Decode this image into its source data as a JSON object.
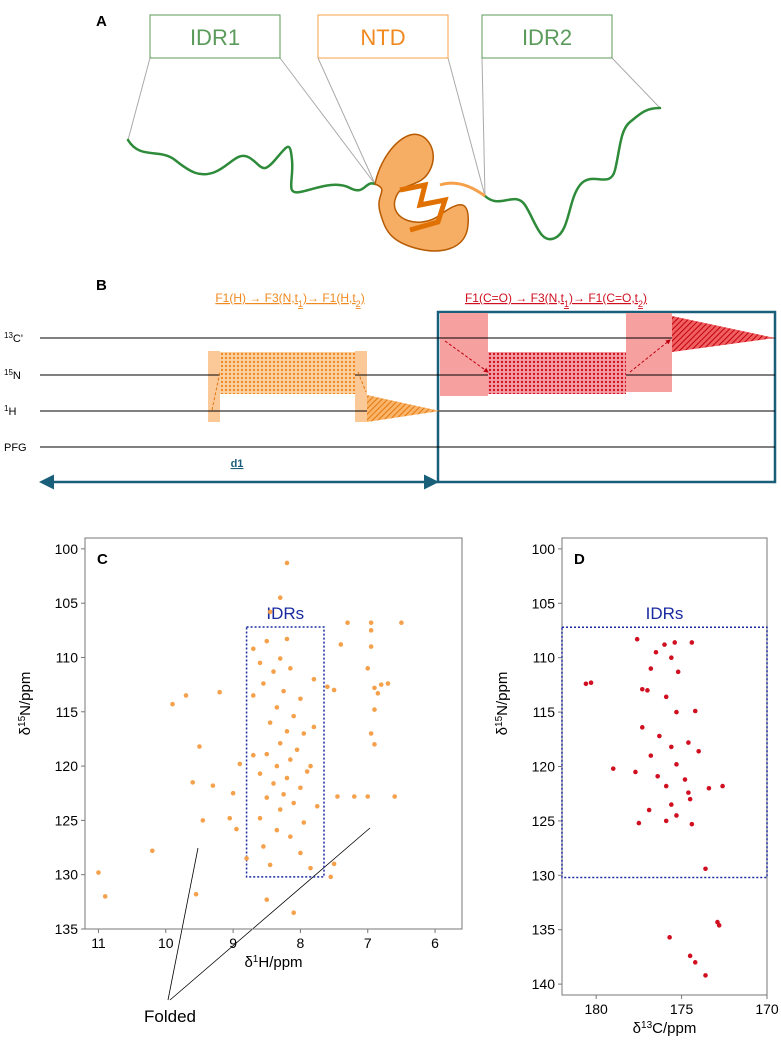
{
  "figure": {
    "panel_a": {
      "label": "A",
      "domains": [
        "IDR1",
        "NTD",
        "IDR2"
      ]
    },
    "panel_b": {
      "label": "B",
      "orange_scheme": {
        "parts": [
          "F1(H) → F3(N,t",
          "1",
          ")→ F1(H,t",
          "2",
          ")"
        ]
      },
      "red_scheme": {
        "parts": [
          "F1(C=O) → F3(N,t",
          "1",
          ")→ F1(C=O,t",
          "2",
          ")"
        ]
      },
      "channels": [
        {
          "sup": "13",
          "text": "C'"
        },
        {
          "sup": "15",
          "text": "N"
        },
        {
          "sup": "1",
          "text": "H"
        },
        {
          "text": "PFG"
        }
      ],
      "delay": "d1"
    },
    "annotation": "Folded"
  },
  "chart_data": [
    {
      "type": "scatter",
      "panel_label": "C",
      "color": "#f5a04a",
      "xlabel": {
        "pre": "δ",
        "sup": "1",
        "post": "H/ppm"
      },
      "ylabel": {
        "pre": "δ",
        "sup": "15",
        "post": "N/ppm"
      },
      "xlim": [
        11.2,
        5.6
      ],
      "ylim": [
        99,
        135
      ],
      "xticks": [
        11,
        10,
        9,
        8,
        7,
        6
      ],
      "yticks": [
        100,
        105,
        110,
        115,
        120,
        125,
        130,
        135
      ],
      "region": {
        "label": "IDRs",
        "x": [
          8.8,
          7.65
        ],
        "y": [
          107.2,
          130.2
        ]
      },
      "x": [
        11.0,
        10.9,
        10.2,
        9.9,
        9.7,
        9.6,
        9.5,
        9.3,
        9.2,
        9.05,
        9.0,
        8.9,
        8.8,
        8.95,
        9.55,
        9.45,
        8.2,
        8.3,
        7.8,
        7.6,
        7.5,
        7.4,
        7.3,
        7.2,
        6.9,
        6.85,
        6.8,
        6.7,
        6.95,
        6.9,
        6.9,
        6.95,
        6.5,
        6.6,
        7.0,
        7.45,
        7.55,
        7.5,
        8.5,
        8.1,
        6.95,
        6.95,
        7.0,
        7.85,
        8.5,
        8.2,
        8.3,
        8.6,
        8.4,
        8.15,
        8.55,
        8.25,
        8.0,
        8.35,
        8.1,
        8.45,
        8.2,
        7.95,
        8.3,
        8.05,
        8.5,
        8.15,
        8.35,
        7.9,
        8.6,
        8.2,
        8.4,
        8.0,
        8.25,
        8.5,
        8.1,
        8.3,
        8.6,
        7.95,
        8.35,
        8.15,
        8.55,
        8.0,
        8.45,
        7.85,
        8.7,
        8.7,
        7.8,
        7.75,
        8.45,
        8.7
      ],
      "y": [
        129.8,
        132,
        127.8,
        114.3,
        113.5,
        121.5,
        118.2,
        121.8,
        113.2,
        124.8,
        122.5,
        119.8,
        128.5,
        125.8,
        131.8,
        125.0,
        101.3,
        104.5,
        112.0,
        112.7,
        113.0,
        108.8,
        106.8,
        122.8,
        112.8,
        113.3,
        112.5,
        112.4,
        109.0,
        114.8,
        118,
        117,
        106.8,
        122.8,
        122.8,
        122.8,
        130.2,
        129.0,
        132.3,
        133.5,
        106.8,
        107.5,
        111.0,
        120.0,
        108.5,
        108.3,
        110.1,
        110.5,
        111.3,
        111.0,
        112.4,
        113.1,
        113.8,
        114.6,
        115.4,
        116.0,
        116.8,
        117.0,
        117.9,
        118.5,
        118.9,
        119.4,
        120.0,
        120.5,
        120.7,
        121.1,
        121.6,
        122.0,
        122.6,
        122.9,
        123.4,
        124.0,
        124.8,
        125.2,
        125.9,
        126.5,
        127.4,
        128.0,
        129.1,
        129.4,
        113.5,
        119.0,
        116.4,
        123.7,
        105.8,
        109.2
      ]
    },
    {
      "type": "scatter",
      "panel_label": "D",
      "color": "#d01020",
      "xlabel": {
        "pre": "δ",
        "sup": "13",
        "post": "C/ppm"
      },
      "ylabel": {
        "pre": "δ",
        "sup": "15",
        "post": "N/ppm"
      },
      "xlim": [
        182,
        170
      ],
      "ylim": [
        99,
        141
      ],
      "xticks": [
        180,
        175,
        170
      ],
      "yticks": [
        100,
        105,
        110,
        115,
        120,
        125,
        130,
        135,
        140
      ],
      "region": {
        "label": "IDRs",
        "x": [
          182,
          170
        ],
        "y": [
          107.2,
          130.2
        ]
      },
      "x": [
        180.6,
        180.3,
        177.3,
        177.0,
        177.6,
        176.5,
        176.0,
        175.4,
        174.4,
        175.6,
        176.8,
        175.2,
        175.9,
        175.3,
        174.2,
        177.3,
        176.3,
        174.6,
        175.6,
        176.8,
        174.0,
        175.3,
        177.7,
        176.4,
        174.8,
        175.9,
        173.4,
        174.6,
        174.5,
        175.6,
        176.9,
        175.3,
        177.5,
        175.9,
        174.4,
        173.6,
        175.7,
        174.5,
        172.9,
        172.8,
        174.2,
        173.6,
        179.0,
        172.6
      ],
      "y": [
        112.4,
        112.3,
        112.9,
        113.0,
        108.3,
        109.5,
        108.8,
        108.6,
        108.6,
        110.0,
        111.0,
        111.3,
        113.6,
        115.0,
        114.9,
        116.4,
        117.2,
        117.8,
        118.2,
        119.0,
        118.6,
        119.8,
        120.5,
        120.9,
        121.2,
        121.8,
        122.0,
        122.4,
        123.0,
        123.5,
        124.0,
        124.5,
        125.2,
        125.0,
        125.3,
        129.4,
        135.7,
        137.4,
        134.3,
        134.6,
        138.0,
        139.2,
        120.2,
        121.8
      ]
    }
  ]
}
